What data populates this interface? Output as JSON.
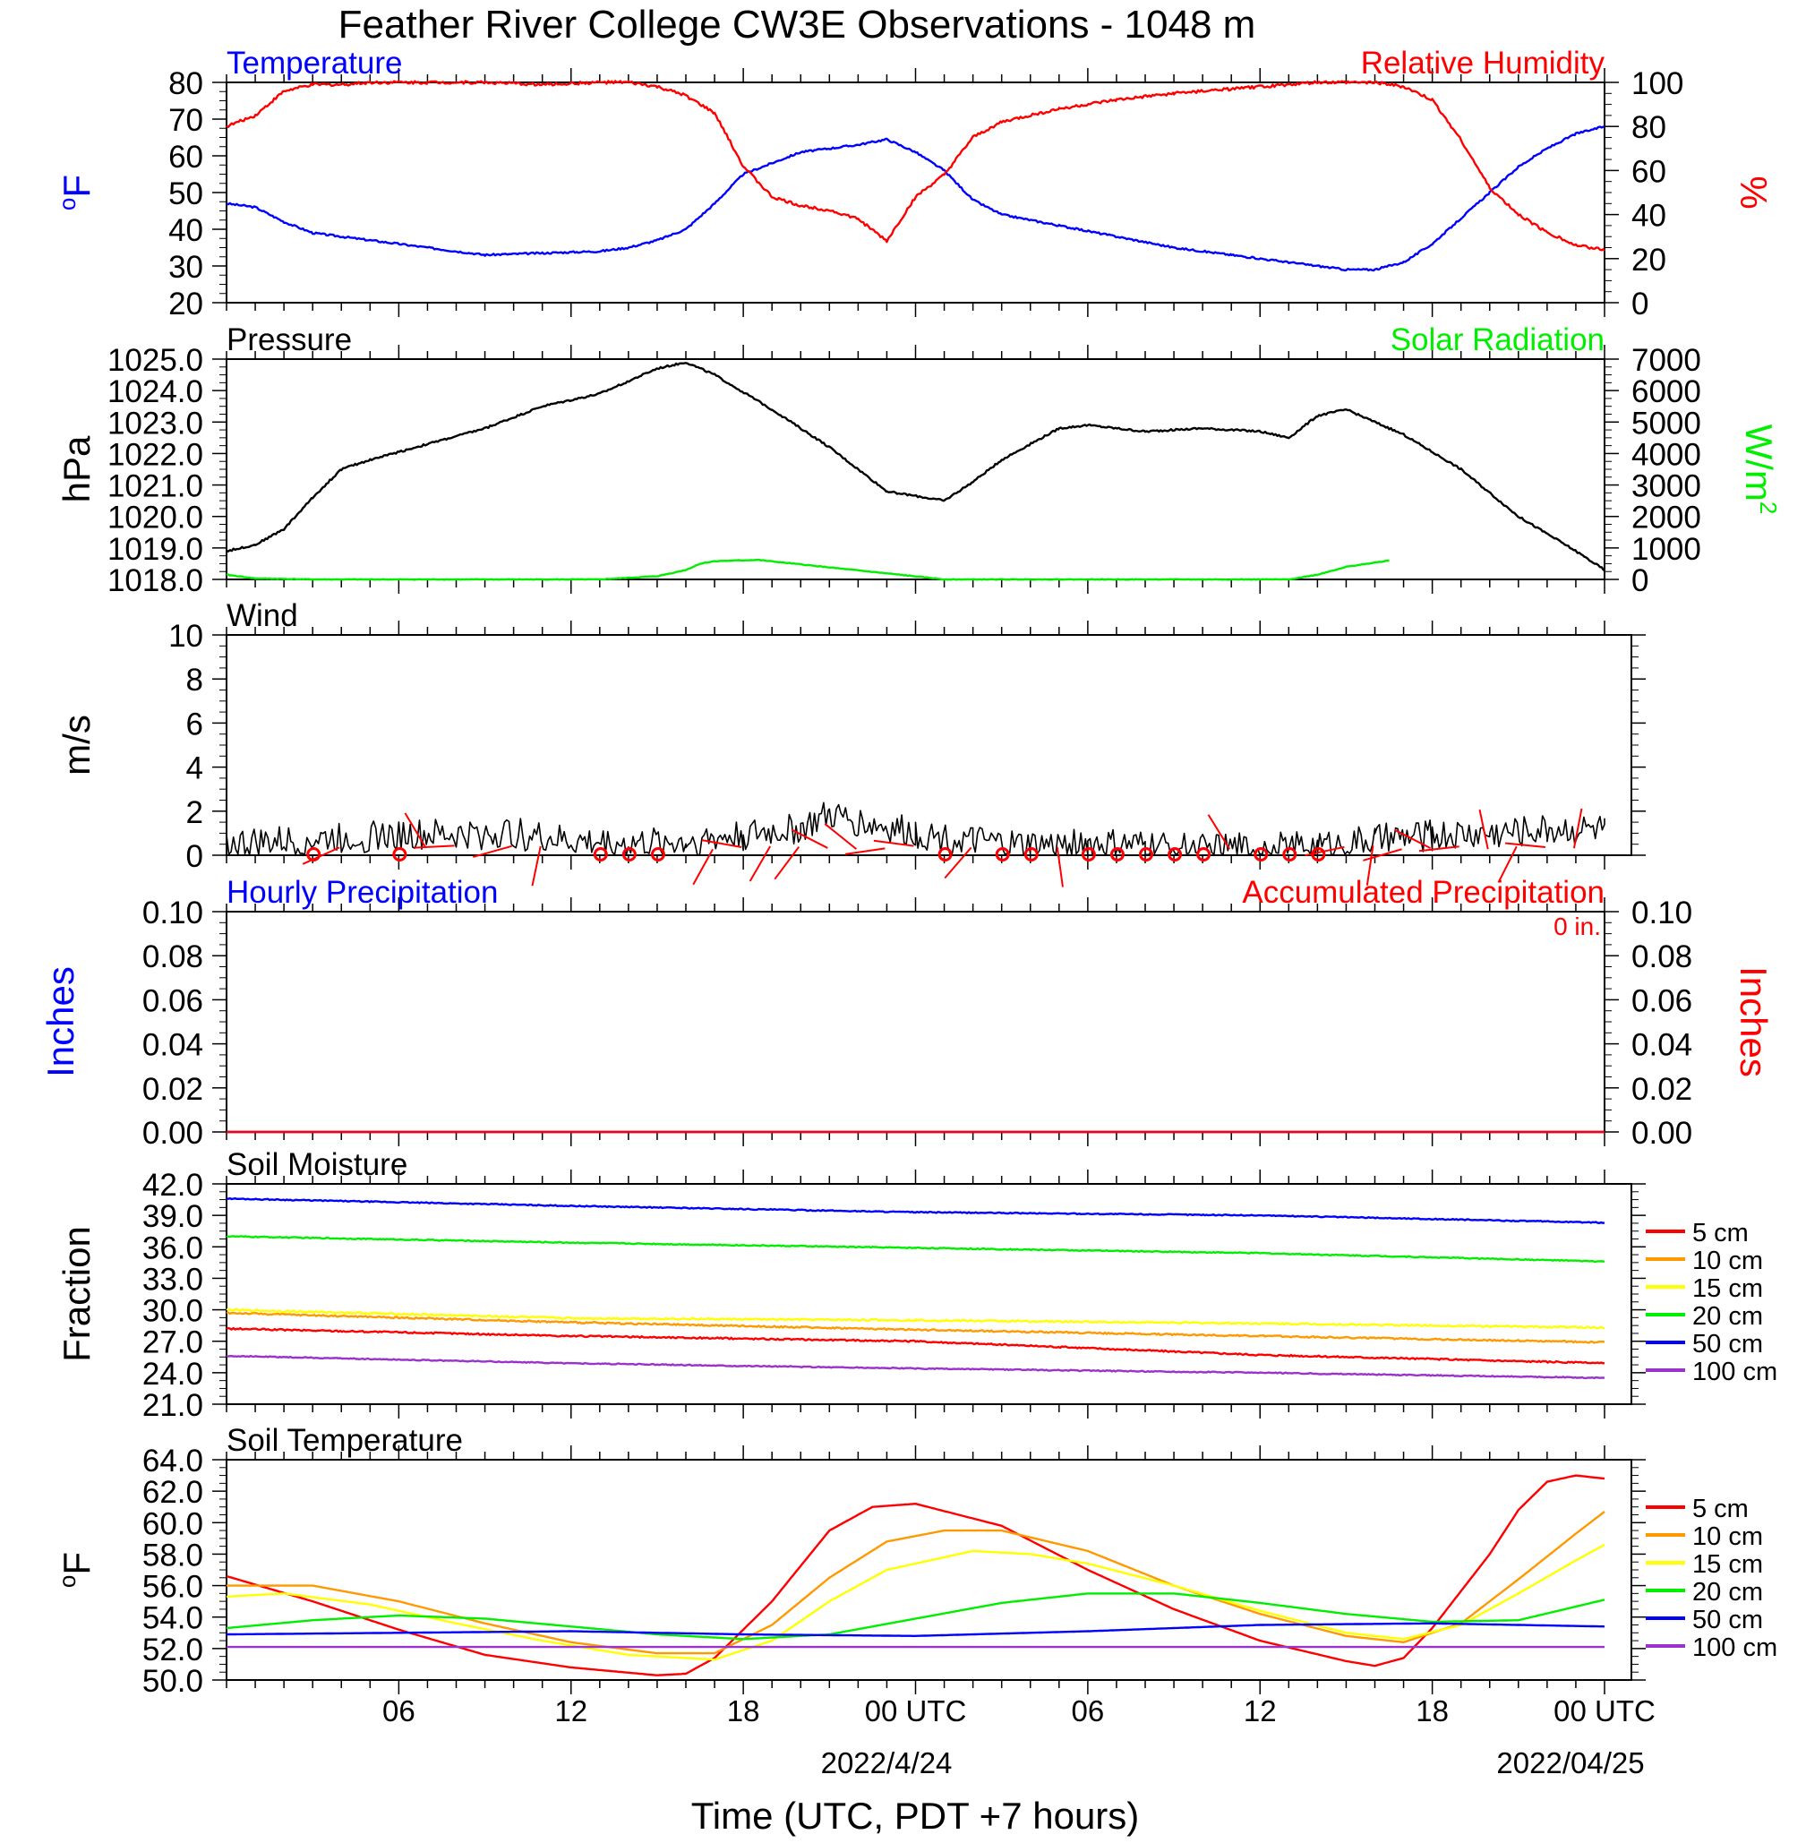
{
  "title": "Feather River College CW3E Observations - 1048 m",
  "colors": {
    "temperature": "#0000ff",
    "humidity": "#ff0000",
    "pressure": "#000000",
    "solar": "#00ee00",
    "wind": "#000000",
    "barbs": "#ff0000",
    "precip_hourly": "#0000ff",
    "precip_accum": "#ff0000",
    "depth_5": "#ff0000",
    "depth_10": "#ff9900",
    "depth_15": "#ffff00",
    "depth_20": "#00ee00",
    "depth_50": "#0000ff",
    "depth_100": "#9933cc"
  },
  "x_axis": {
    "ticks": [
      "06",
      "12",
      "18",
      "00 UTC",
      "06",
      "12",
      "18",
      "00 UTC"
    ],
    "date_labels": [
      "2022/4/24",
      "2022/04/25"
    ],
    "label": "Time (UTC, PDT +7 hours)"
  },
  "chart_data": [
    {
      "type": "line",
      "title_left": "Temperature",
      "title_right": "Relative Humidity",
      "ylabel_left": "oF",
      "ylabel_right": "%",
      "ylim_left": [
        20,
        80
      ],
      "ylim_right": [
        0,
        100
      ],
      "yticks_left": [
        "80",
        "70",
        "60",
        "50",
        "40",
        "30",
        "20"
      ],
      "yticks_right": [
        "100",
        "80",
        "60",
        "40",
        "20",
        "0"
      ],
      "x_hours": [
        1,
        2,
        3,
        4,
        5,
        6,
        8,
        10,
        12,
        14,
        15,
        16,
        17,
        18,
        19,
        20,
        21,
        22,
        23,
        24,
        25,
        26,
        27,
        28,
        30,
        32,
        34,
        36,
        38,
        39,
        40,
        41,
        42,
        43,
        44,
        45,
        46,
        47,
        48,
        49
      ],
      "series": [
        {
          "name": "Temperature",
          "axis": "left",
          "values": [
            47,
            46,
            42,
            39,
            38,
            37,
            35,
            33,
            33.5,
            34,
            35,
            37,
            40,
            47,
            55,
            58,
            61,
            62,
            63,
            64.5,
            61,
            56,
            48,
            44,
            41,
            38,
            35,
            33,
            31,
            30,
            29,
            29,
            31,
            36,
            43,
            50,
            57,
            62,
            66,
            68
          ]
        },
        {
          "name": "Relative Humidity",
          "axis": "right",
          "values": [
            80,
            85,
            96,
            99,
            99,
            100,
            100,
            100,
            99,
            100,
            100,
            98,
            94,
            86,
            62,
            48,
            44,
            42,
            38,
            28,
            48,
            58,
            75,
            82,
            88,
            92,
            95,
            97,
            99,
            100,
            100,
            100,
            98,
            92,
            74,
            52,
            40,
            32,
            26,
            24
          ]
        }
      ]
    },
    {
      "type": "line",
      "title_left": "Pressure",
      "title_right": "Solar Radiation",
      "ylabel_left": "hPa",
      "ylabel_right": "W/m2",
      "ylim_left": [
        1018,
        1025
      ],
      "ylim_right": [
        0,
        7000
      ],
      "yticks_left": [
        "1025.0",
        "1024.0",
        "1023.0",
        "1022.0",
        "1021.0",
        "1020.0",
        "1019.0",
        "1018.0"
      ],
      "yticks_right": [
        "7000",
        "6000",
        "5000",
        "4000",
        "3000",
        "2000",
        "1000",
        "0"
      ],
      "series": [
        {
          "name": "Pressure",
          "axis": "left",
          "x_hours": [
            1,
            2,
            3,
            4,
            5,
            6,
            8,
            10,
            12,
            14,
            16,
            17,
            18,
            20,
            22,
            24,
            26,
            27,
            28,
            30,
            31,
            33,
            35,
            37,
            38,
            39,
            40,
            42,
            44,
            46,
            48,
            49
          ],
          "values": [
            1018.9,
            1019.1,
            1019.6,
            1020.6,
            1021.5,
            1021.8,
            1022.3,
            1022.8,
            1023.5,
            1023.9,
            1024.7,
            1024.9,
            1024.5,
            1023.4,
            1022.2,
            1020.8,
            1020.5,
            1021.1,
            1021.8,
            1022.8,
            1022.9,
            1022.7,
            1022.8,
            1022.7,
            1022.5,
            1023.2,
            1023.4,
            1022.6,
            1021.5,
            1020.0,
            1018.9,
            1018.3
          ]
        },
        {
          "name": "Solar Radiation",
          "axis": "right",
          "x_hours": [
            1,
            2,
            4,
            14,
            16,
            17,
            17.5,
            18,
            19.5,
            26,
            38,
            39,
            40,
            41.5
          ],
          "values": [
            150,
            30,
            0,
            0,
            100,
            300,
            500,
            580,
            620,
            0,
            0,
            150,
            400,
            600
          ]
        }
      ]
    },
    {
      "type": "line",
      "title_left": "Wind",
      "ylabel_left": "m/s",
      "ylim_left": [
        0,
        10
      ],
      "yticks_left": [
        "10",
        "8",
        "6",
        "4",
        "2",
        "0"
      ],
      "series": [
        {
          "name": "Wind",
          "axis": "left",
          "x_hours": [
            1,
            3,
            5,
            7,
            9,
            11,
            13,
            15,
            17,
            19,
            21,
            22,
            23,
            25,
            27,
            29,
            31,
            33,
            35,
            37,
            39,
            41,
            43,
            45,
            47,
            49
          ],
          "values": [
            0.5,
            0.6,
            0.8,
            0.9,
            0.9,
            1.0,
            0.6,
            0.5,
            0.6,
            0.9,
            1.2,
            1.8,
            1.5,
            1.0,
            0.6,
            0.4,
            0.5,
            0.4,
            0.3,
            0.3,
            0.4,
            0.7,
            0.9,
            1.0,
            1.2,
            1.2
          ]
        }
      ],
      "barbs_hours": [
        4,
        5,
        7,
        8,
        9,
        11,
        12,
        14,
        15,
        16,
        18,
        19,
        20,
        21,
        22,
        23,
        24,
        25,
        26,
        27,
        28,
        29,
        30,
        31,
        32,
        33,
        34,
        35,
        36,
        37,
        38,
        39,
        40,
        41,
        42,
        43,
        44,
        45,
        46,
        47,
        48
      ],
      "calm_hours": [
        4,
        7,
        14,
        15,
        16,
        26,
        28,
        29,
        31,
        32,
        33,
        34,
        35,
        37,
        38,
        39
      ]
    },
    {
      "type": "line",
      "title_left": "Hourly Precipitation",
      "title_right": "Accumulated Precipitation",
      "annotation": "0 in.",
      "ylabel_left": "Inches",
      "ylabel_right": "Inches",
      "ylim_left": [
        0,
        0.1
      ],
      "ylim_right": [
        0,
        0.1
      ],
      "yticks_left": [
        "0.10",
        "0.08",
        "0.06",
        "0.04",
        "0.02",
        "0.00"
      ],
      "yticks_right": [
        "0.10",
        "0.08",
        "0.06",
        "0.04",
        "0.02",
        "0.00"
      ],
      "series": [
        {
          "name": "Hourly Precipitation",
          "axis": "left",
          "x_hours": [
            1,
            49
          ],
          "values": [
            0,
            0
          ]
        },
        {
          "name": "Accumulated Precipitation",
          "axis": "right",
          "x_hours": [
            1,
            49
          ],
          "values": [
            0,
            0
          ]
        }
      ]
    },
    {
      "type": "line",
      "title_left": "Soil Moisture",
      "ylabel_left": "Fraction",
      "ylim_left": [
        21,
        42
      ],
      "yticks_left": [
        "42.0",
        "39.0",
        "36.0",
        "33.0",
        "30.0",
        "27.0",
        "24.0",
        "21.0"
      ],
      "x_hours": [
        1,
        13,
        25,
        37,
        49
      ],
      "series": [
        {
          "name": "5 cm",
          "values": [
            28.2,
            27.5,
            27.0,
            25.7,
            24.9
          ]
        },
        {
          "name": "10 cm",
          "values": [
            29.7,
            28.8,
            28.1,
            27.5,
            26.9
          ]
        },
        {
          "name": "15 cm",
          "values": [
            30.0,
            29.2,
            29.0,
            28.7,
            28.3
          ]
        },
        {
          "name": "20 cm",
          "values": [
            37.0,
            36.4,
            35.9,
            35.4,
            34.6
          ]
        },
        {
          "name": "50 cm",
          "values": [
            40.6,
            39.9,
            39.3,
            39.0,
            38.3
          ]
        },
        {
          "name": "100 cm",
          "values": [
            25.6,
            24.9,
            24.4,
            24.0,
            23.5
          ]
        }
      ],
      "legend": [
        "5 cm",
        "10 cm",
        "15 cm",
        "20 cm",
        "50 cm",
        "100 cm"
      ]
    },
    {
      "type": "line",
      "title_left": "Soil Temperature",
      "ylabel_left": "oF",
      "ylim_left": [
        50,
        64
      ],
      "yticks_left": [
        "64.0",
        "62.0",
        "60.0",
        "58.0",
        "56.0",
        "54.0",
        "52.0",
        "50.0"
      ],
      "series": [
        {
          "name": "5 cm",
          "x_hours": [
            1,
            4,
            7,
            10,
            13,
            16,
            17,
            18,
            20,
            22,
            23.5,
            25,
            28,
            31,
            34,
            37,
            40,
            41,
            42,
            43,
            45,
            46,
            47,
            48,
            49
          ],
          "values": [
            56.6,
            55.0,
            53.2,
            51.6,
            50.8,
            50.3,
            50.4,
            51.4,
            55.0,
            59.5,
            61.0,
            61.2,
            59.8,
            57.0,
            54.5,
            52.5,
            51.2,
            50.9,
            51.4,
            53.3,
            58.0,
            60.8,
            62.6,
            63.0,
            62.8
          ]
        },
        {
          "name": "10 cm",
          "x_hours": [
            1,
            4,
            7,
            10,
            13,
            16,
            18,
            20,
            22,
            24,
            26,
            28,
            31,
            34,
            37,
            40,
            42,
            44,
            46,
            48,
            49
          ],
          "values": [
            56.0,
            56.0,
            55.0,
            53.6,
            52.4,
            51.7,
            51.7,
            53.5,
            56.5,
            58.8,
            59.5,
            59.5,
            58.2,
            56.0,
            54.2,
            52.8,
            52.4,
            53.6,
            56.4,
            59.3,
            60.7
          ]
        },
        {
          "name": "15 cm",
          "x_hours": [
            1,
            3,
            6,
            9,
            12,
            15,
            18,
            20,
            22,
            24,
            27,
            29,
            31,
            34,
            37,
            40,
            42,
            44,
            46,
            48,
            49
          ],
          "values": [
            55.3,
            55.5,
            54.8,
            53.6,
            52.5,
            51.6,
            51.3,
            52.5,
            55.0,
            57.0,
            58.2,
            58.0,
            57.4,
            56.0,
            54.4,
            53.0,
            52.6,
            53.5,
            55.5,
            57.6,
            58.6
          ]
        },
        {
          "name": "20 cm",
          "x_hours": [
            1,
            4,
            7,
            10,
            13,
            16,
            19,
            22,
            25,
            28,
            31,
            34,
            37,
            40,
            43,
            46,
            49
          ],
          "values": [
            53.3,
            53.8,
            54.1,
            53.9,
            53.4,
            52.9,
            52.6,
            52.9,
            53.9,
            54.9,
            55.5,
            55.5,
            54.9,
            54.2,
            53.7,
            53.8,
            55.1
          ]
        },
        {
          "name": "50 cm",
          "x_hours": [
            1,
            7,
            13,
            19,
            25,
            31,
            37,
            43,
            49
          ],
          "values": [
            52.9,
            53.0,
            53.1,
            52.9,
            52.8,
            53.1,
            53.5,
            53.6,
            53.4
          ]
        },
        {
          "name": "100 cm",
          "x_hours": [
            1,
            49
          ],
          "values": [
            52.1,
            52.1
          ]
        }
      ],
      "legend": [
        "5 cm",
        "10 cm",
        "15 cm",
        "20 cm",
        "50 cm",
        "100 cm"
      ]
    }
  ]
}
